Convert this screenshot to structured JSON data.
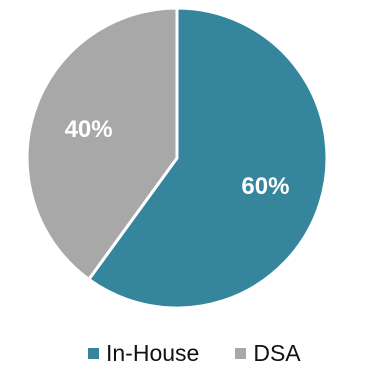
{
  "chart_data": {
    "type": "pie",
    "title": "",
    "slices": [
      {
        "label": "In-House",
        "value": 60,
        "value_label": "60%",
        "color": "#35869c"
      },
      {
        "label": "DSA",
        "value": 40,
        "value_label": "40%",
        "color": "#a8a8a8"
      }
    ],
    "start_angle": "12 o'clock",
    "direction": "clockwise",
    "legend_position": "bottom"
  }
}
